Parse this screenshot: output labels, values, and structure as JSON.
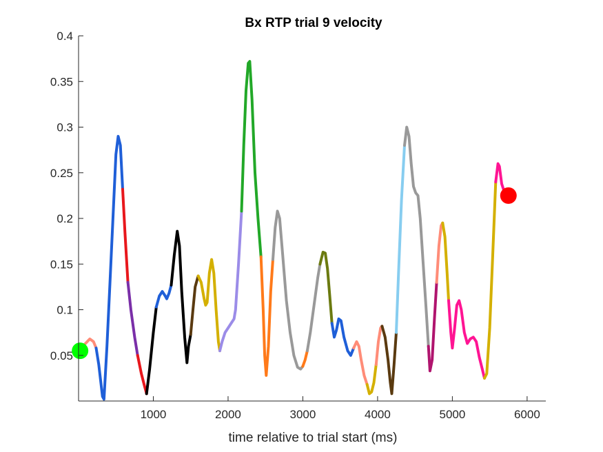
{
  "chart_data": {
    "type": "line",
    "title": "Bx  RTP trial 9 velocity",
    "xlabel": "time relative to trial start (ms)",
    "ylabel": "",
    "xlim": [
      0,
      6250
    ],
    "ylim": [
      0,
      0.4
    ],
    "xticks": [
      1000,
      2000,
      3000,
      4000,
      5000,
      6000
    ],
    "xtick_labels": [
      "1000",
      "2000",
      "3000",
      "4000",
      "5000",
      "6000"
    ],
    "yticks": [
      0.05,
      0.1,
      0.15,
      0.2,
      0.25,
      0.3,
      0.35,
      0.4
    ],
    "ytick_labels": [
      "0.05",
      "0.1",
      "0.15",
      "0.2",
      "0.25",
      "0.3",
      "0.35",
      "0.4"
    ],
    "grid": false,
    "legend": "none",
    "line_width": 4,
    "series": [
      {
        "color": "#ff8c78",
        "points": [
          [
            20,
            0.058
          ],
          [
            80,
            0.062
          ],
          [
            150,
            0.068
          ],
          [
            200,
            0.065
          ],
          [
            235,
            0.058
          ]
        ]
      },
      {
        "color": "#1f5fd8",
        "points": [
          [
            235,
            0.058
          ],
          [
            270,
            0.04
          ],
          [
            320,
            0.005
          ],
          [
            340,
            0.002
          ],
          [
            380,
            0.06
          ],
          [
            420,
            0.13
          ],
          [
            460,
            0.2
          ],
          [
            500,
            0.27
          ],
          [
            530,
            0.29
          ],
          [
            560,
            0.28
          ],
          [
            590,
            0.232
          ]
        ]
      },
      {
        "color": "#e8171c",
        "points": [
          [
            590,
            0.232
          ],
          [
            620,
            0.185
          ],
          [
            660,
            0.13
          ]
        ]
      },
      {
        "color": "#7a2fa8",
        "points": [
          [
            660,
            0.13
          ],
          [
            700,
            0.1
          ],
          [
            750,
            0.07
          ],
          [
            790,
            0.05
          ]
        ]
      },
      {
        "color": "#e8171c",
        "points": [
          [
            790,
            0.05
          ],
          [
            840,
            0.03
          ],
          [
            880,
            0.017
          ],
          [
            910,
            0.008
          ]
        ]
      },
      {
        "color": "#000000",
        "points": [
          [
            910,
            0.008
          ],
          [
            950,
            0.035
          ],
          [
            1000,
            0.075
          ],
          [
            1040,
            0.103
          ]
        ]
      },
      {
        "color": "#1f5fd8",
        "points": [
          [
            1040,
            0.103
          ],
          [
            1080,
            0.115
          ],
          [
            1120,
            0.12
          ],
          [
            1160,
            0.115
          ],
          [
            1180,
            0.112
          ],
          [
            1210,
            0.118
          ],
          [
            1240,
            0.127
          ]
        ]
      },
      {
        "color": "#000000",
        "points": [
          [
            1240,
            0.127
          ],
          [
            1280,
            0.16
          ],
          [
            1320,
            0.186
          ],
          [
            1350,
            0.17
          ],
          [
            1380,
            0.12
          ],
          [
            1420,
            0.07
          ],
          [
            1450,
            0.042
          ],
          [
            1470,
            0.06
          ],
          [
            1500,
            0.073
          ]
        ]
      },
      {
        "color": "#5a3a10",
        "points": [
          [
            1500,
            0.073
          ],
          [
            1530,
            0.1
          ],
          [
            1560,
            0.125
          ],
          [
            1600,
            0.137
          ]
        ]
      },
      {
        "color": "#d4b000",
        "points": [
          [
            1600,
            0.137
          ],
          [
            1640,
            0.13
          ],
          [
            1680,
            0.112
          ],
          [
            1700,
            0.105
          ],
          [
            1720,
            0.108
          ],
          [
            1750,
            0.14
          ],
          [
            1780,
            0.155
          ],
          [
            1810,
            0.14
          ],
          [
            1840,
            0.1
          ],
          [
            1870,
            0.065
          ],
          [
            1890,
            0.055
          ]
        ]
      },
      {
        "color": "#9b8ce8",
        "points": [
          [
            1890,
            0.055
          ],
          [
            1920,
            0.065
          ],
          [
            1960,
            0.075
          ],
          [
            2000,
            0.08
          ],
          [
            2040,
            0.085
          ],
          [
            2080,
            0.09
          ],
          [
            2100,
            0.1
          ],
          [
            2140,
            0.15
          ],
          [
            2180,
            0.208
          ]
        ]
      },
      {
        "color": "#22a828",
        "points": [
          [
            2180,
            0.208
          ],
          [
            2210,
            0.28
          ],
          [
            2240,
            0.34
          ],
          [
            2270,
            0.37
          ],
          [
            2290,
            0.372
          ],
          [
            2320,
            0.33
          ],
          [
            2360,
            0.25
          ],
          [
            2400,
            0.2
          ],
          [
            2440,
            0.158
          ]
        ]
      },
      {
        "color": "#ff7a1a",
        "points": [
          [
            2440,
            0.158
          ],
          [
            2470,
            0.1
          ],
          [
            2490,
            0.05
          ],
          [
            2510,
            0.028
          ],
          [
            2540,
            0.06
          ],
          [
            2570,
            0.12
          ],
          [
            2600,
            0.155
          ]
        ]
      },
      {
        "color": "#999999",
        "points": [
          [
            2600,
            0.155
          ],
          [
            2630,
            0.19
          ],
          [
            2660,
            0.208
          ],
          [
            2690,
            0.2
          ],
          [
            2730,
            0.16
          ],
          [
            2780,
            0.11
          ],
          [
            2830,
            0.075
          ],
          [
            2880,
            0.05
          ],
          [
            2930,
            0.037
          ],
          [
            2970,
            0.035
          ],
          [
            3000,
            0.038
          ]
        ]
      },
      {
        "color": "#ff7a1a",
        "points": [
          [
            3000,
            0.038
          ],
          [
            3030,
            0.045
          ],
          [
            3060,
            0.055
          ]
        ]
      },
      {
        "color": "#999999",
        "points": [
          [
            3060,
            0.055
          ],
          [
            3100,
            0.075
          ],
          [
            3150,
            0.105
          ],
          [
            3200,
            0.135
          ],
          [
            3230,
            0.15
          ]
        ]
      },
      {
        "color": "#6b7a10",
        "points": [
          [
            3230,
            0.15
          ],
          [
            3270,
            0.163
          ],
          [
            3300,
            0.162
          ],
          [
            3330,
            0.145
          ],
          [
            3360,
            0.115
          ],
          [
            3390,
            0.085
          ]
        ]
      },
      {
        "color": "#1f5fd8",
        "points": [
          [
            3390,
            0.085
          ],
          [
            3420,
            0.07
          ],
          [
            3450,
            0.078
          ],
          [
            3480,
            0.09
          ],
          [
            3510,
            0.088
          ],
          [
            3550,
            0.07
          ],
          [
            3600,
            0.055
          ],
          [
            3640,
            0.05
          ],
          [
            3680,
            0.058
          ]
        ]
      },
      {
        "color": "#ff8c78",
        "points": [
          [
            3680,
            0.058
          ],
          [
            3720,
            0.065
          ],
          [
            3750,
            0.06
          ],
          [
            3780,
            0.045
          ],
          [
            3820,
            0.028
          ],
          [
            3860,
            0.018
          ]
        ]
      },
      {
        "color": "#d4b000",
        "points": [
          [
            3860,
            0.018
          ],
          [
            3890,
            0.008
          ],
          [
            3920,
            0.01
          ],
          [
            3950,
            0.02
          ],
          [
            3980,
            0.04
          ]
        ]
      },
      {
        "color": "#ff8c78",
        "points": [
          [
            3980,
            0.04
          ],
          [
            4010,
            0.065
          ],
          [
            4040,
            0.08
          ],
          [
            4060,
            0.082
          ]
        ]
      },
      {
        "color": "#5a3a10",
        "points": [
          [
            4060,
            0.082
          ],
          [
            4100,
            0.07
          ],
          [
            4140,
            0.045
          ],
          [
            4170,
            0.02
          ],
          [
            4190,
            0.008
          ],
          [
            4220,
            0.04
          ],
          [
            4250,
            0.075
          ]
        ]
      },
      {
        "color": "#87cdf0",
        "points": [
          [
            4250,
            0.075
          ],
          [
            4280,
            0.14
          ],
          [
            4320,
            0.22
          ],
          [
            4360,
            0.28
          ]
        ]
      },
      {
        "color": "#999999",
        "points": [
          [
            4360,
            0.28
          ],
          [
            4390,
            0.3
          ],
          [
            4420,
            0.29
          ],
          [
            4450,
            0.26
          ],
          [
            4480,
            0.235
          ],
          [
            4510,
            0.228
          ],
          [
            4540,
            0.225
          ],
          [
            4570,
            0.2
          ],
          [
            4610,
            0.15
          ],
          [
            4650,
            0.1
          ],
          [
            4680,
            0.06
          ]
        ]
      },
      {
        "color": "#b0146e",
        "points": [
          [
            4680,
            0.06
          ],
          [
            4700,
            0.033
          ],
          [
            4730,
            0.045
          ],
          [
            4760,
            0.09
          ],
          [
            4790,
            0.13
          ]
        ]
      },
      {
        "color": "#ff8c78",
        "points": [
          [
            4790,
            0.13
          ],
          [
            4820,
            0.17
          ],
          [
            4850,
            0.192
          ],
          [
            4870,
            0.195
          ]
        ]
      },
      {
        "color": "#d4b000",
        "points": [
          [
            4870,
            0.195
          ],
          [
            4900,
            0.18
          ],
          [
            4930,
            0.14
          ],
          [
            4950,
            0.11
          ]
        ]
      },
      {
        "color": "#ff1493",
        "points": [
          [
            4950,
            0.11
          ],
          [
            4980,
            0.075
          ],
          [
            5000,
            0.058
          ],
          [
            5030,
            0.08
          ],
          [
            5060,
            0.105
          ],
          [
            5090,
            0.11
          ],
          [
            5120,
            0.1
          ],
          [
            5160,
            0.075
          ],
          [
            5200,
            0.063
          ],
          [
            5240,
            0.068
          ],
          [
            5280,
            0.07
          ],
          [
            5320,
            0.065
          ],
          [
            5360,
            0.048
          ],
          [
            5400,
            0.035
          ],
          [
            5430,
            0.025
          ]
        ]
      },
      {
        "color": "#d4b000",
        "points": [
          [
            5430,
            0.025
          ],
          [
            5460,
            0.03
          ],
          [
            5500,
            0.08
          ],
          [
            5540,
            0.16
          ],
          [
            5580,
            0.24
          ]
        ]
      },
      {
        "color": "#ff1493",
        "points": [
          [
            5580,
            0.24
          ],
          [
            5610,
            0.26
          ],
          [
            5630,
            0.257
          ],
          [
            5660,
            0.238
          ],
          [
            5700,
            0.228
          ],
          [
            5750,
            0.225
          ]
        ]
      }
    ],
    "start_marker": {
      "x": 20,
      "y": 0.055,
      "color": "#00ff00"
    },
    "end_marker": {
      "x": 5750,
      "y": 0.225,
      "color": "#ff0000"
    }
  }
}
